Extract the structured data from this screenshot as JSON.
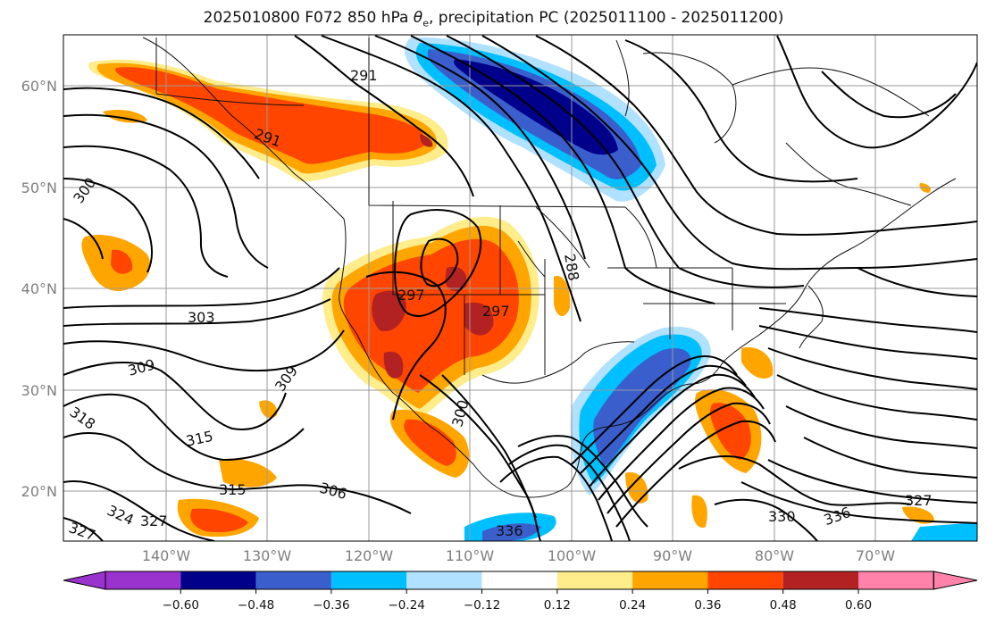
{
  "title": {
    "prefix": "2025010800 F072 850 hPa ",
    "symbol": "θ",
    "symbol_sub": "e",
    "suffix": ", precipitation PC (2025011100 - 2025011200)"
  },
  "map": {
    "lat_ticks": [
      "60°N",
      "50°N",
      "40°N",
      "30°N",
      "20°N"
    ],
    "lon_ticks": [
      "140°W",
      "130°W",
      "120°W",
      "110°W",
      "100°W",
      "90°W",
      "80°W",
      "70°W"
    ],
    "contour_labels": [
      "291",
      "300",
      "291",
      "303",
      "309",
      "309",
      "318",
      "315",
      "315",
      "306",
      "324",
      "327",
      "327",
      "297",
      "297",
      "288",
      "300",
      "330",
      "336",
      "327",
      "336"
    ]
  },
  "colorbar": {
    "ticks": [
      "−0.60",
      "−0.48",
      "−0.36",
      "−0.24",
      "−0.12",
      "0.12",
      "0.24",
      "0.36",
      "0.48",
      "0.60"
    ],
    "colors": [
      "#9a32cd",
      "#00008b",
      "#3a5fcd",
      "#00bfff",
      "#b0e2ff",
      "#ffffff",
      "#ffec8b",
      "#ffa500",
      "#ff4500",
      "#b22222",
      "#ff82ab"
    ]
  }
}
